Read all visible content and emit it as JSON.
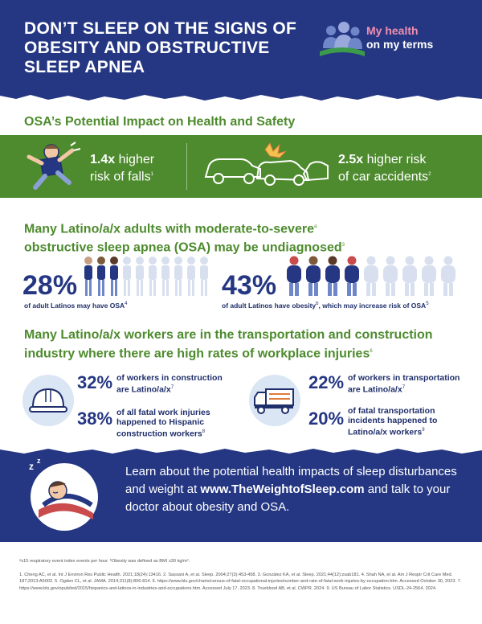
{
  "header": {
    "title": "DON’T SLEEP ON THE SIGNS OF OBESITY AND OBSTRUCTIVE SLEEP APNEA",
    "logo_line1": "My health",
    "logo_line2": "on my terms"
  },
  "impact": {
    "heading": "OSA’s Potential Impact on Health and Safety",
    "falls_value": "1.4x",
    "falls_text1": " higher",
    "falls_text2": "risk of falls",
    "falls_sup": "1",
    "cars_value": "2.5x",
    "cars_text1": " higher risk",
    "cars_text2": "of car accidents",
    "cars_sup": "2"
  },
  "undiagnosed": {
    "heading_line1": "Many Latino/a/x adults with moderate-to-severe",
    "heading_sup1": "a",
    "heading_line2": "obstructive sleep apnea (OSA) may be undiagnosed",
    "heading_sup2": "3",
    "osa_pct": "28%",
    "osa_text": "of adult Latinos may have OSA",
    "osa_sup": "4",
    "obesity_pct": "43%",
    "obesity_text1": "of adult Latinos have obesity",
    "obesity_sup1": "b",
    "obesity_text2": ", which may increase risk of OSA",
    "obesity_sup2": "5"
  },
  "workers": {
    "heading_line1": "Many Latino/a/x workers are in the transportation and construction",
    "heading_line2": "industry where there are high rates of workplace injuries",
    "heading_sup": "6",
    "construction_pct": "32%",
    "construction_text": "of workers in construction are Latino/a/x",
    "construction_sup": "7",
    "construction_fatal_pct": "38%",
    "construction_fatal_text": "of all fatal work injuries happened to Hispanic construction workers",
    "construction_fatal_sup": "8",
    "transport_pct": "22%",
    "transport_text": "of workers in transportation are Latino/a/x",
    "transport_sup": "7",
    "transport_fatal_pct": "20%",
    "transport_fatal_text": "of fatal transportation incidents happened to Latino/a/x workers",
    "transport_fatal_sup": "9"
  },
  "cta": {
    "text1": "Learn about the potential health impacts of sleep disturbances and weight at ",
    "link": "www.TheWeightofSleep.com",
    "text2": " and talk to your doctor about obesity and OSA."
  },
  "footnotes": {
    "defs": "ᵃ≥15 respiratory event index events per hour. ᵇObesity was defined as BMI ≥30 kg/m².",
    "refs": "1. Cheng AC, et al. Int J Environ Res Public Health. 2021;18(24):13416. 2. Sassani A, et al. Sleep. 2004;27(3):453-458. 3. González KA, et al. Sleep. 2021;44(12):zsab181. 4. Shah NA, et al. Am J Respir Crit Care Med. 187;2013:A5002. 5. Ogden CL, et al. JAMA. 2014;311(8):806-814. 6. https://www.bls.gov/charts/census-of-fatal-occupational-injuries/number-and-rate-of-fatal-work-injuries-by-occupation.htm. Accessed October 30, 2023. 7. https://www.bls.gov/opub/ted/2015/hispanics-and-latinos-in-industries-and-occupations.htm. Accessed July 17, 2023. 8. Trueblood AB, et al. CWPR. 2024. 9. US Bureau of Labor Statistics. USDL-24-2564. 2024."
  },
  "colors": {
    "navy": "#253783",
    "green": "#4e8b2e",
    "pink": "#f08fb0",
    "light_blue": "#dbe6f4"
  }
}
